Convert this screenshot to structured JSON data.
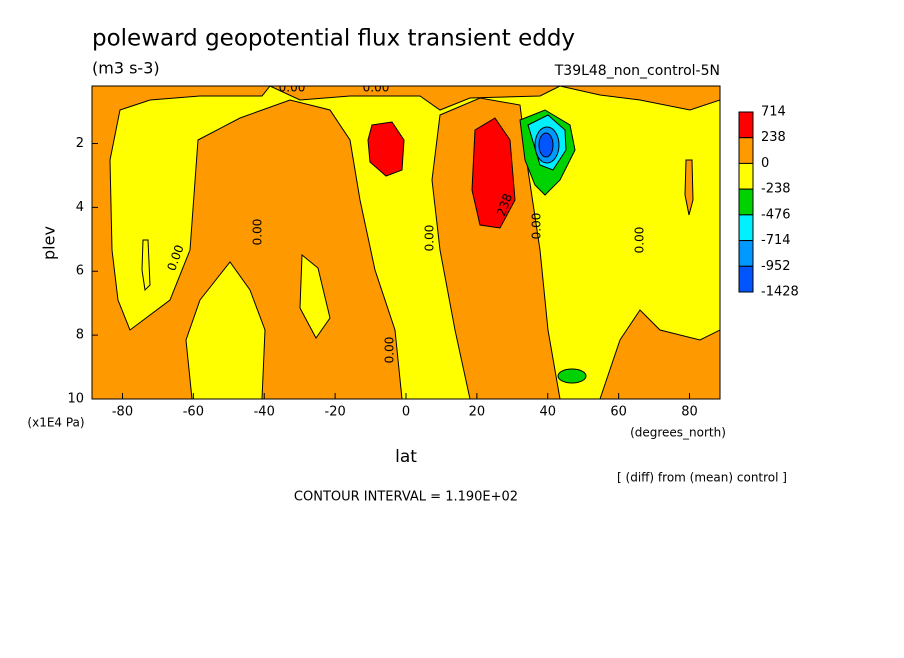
{
  "chart_data": {
    "type": "contour",
    "title": "poleward geopotential flux transient eddy",
    "units": "(m3 s-3)",
    "dataset": "T39L48_non_control-5N",
    "x_label": "lat",
    "x_units": "(degrees_north)",
    "y_label": "plev",
    "y_units": "(x1E4 Pa)",
    "xlim": [
      -88.6,
      88.6
    ],
    "xticks": [
      -80,
      -60,
      -40,
      -20,
      0,
      20,
      40,
      60,
      80
    ],
    "ylim": [
      10,
      0.2
    ],
    "yticks": [
      2,
      4,
      6,
      8,
      10
    ],
    "colorbar": {
      "levels": [
        714,
        238,
        0,
        -238,
        -476,
        -714,
        -952,
        -1428
      ],
      "colors": [
        "#ff0000",
        "#ff9900",
        "#ffff00",
        "#00d200",
        "#00f0ff",
        "#0099ff",
        "#0055ff"
      ]
    },
    "contour_labels": [
      "0.00",
      "0.00",
      "0.00",
      "0.00",
      "0.00",
      "0.00",
      "0.00",
      "0.00",
      "238"
    ],
    "contour_interval": "CONTOUR INTERVAL = 1.190E+02",
    "note": "[ (diff) from (mean) control ]"
  }
}
